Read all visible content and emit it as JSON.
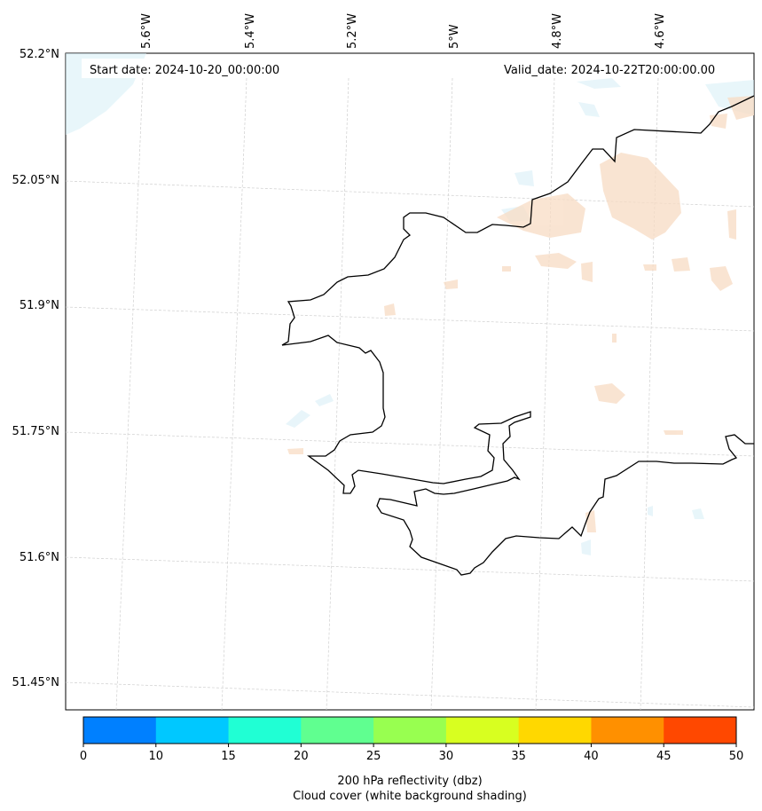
{
  "map": {
    "start_label": "Start date: 2024-10-20_00:00:00",
    "valid_label": "Valid_date: 2024-10-22T20:00:00.00",
    "lon_labels": [
      "5.6°W",
      "5.4°W",
      "5.2°W",
      "5°W",
      "4.8°W",
      "4.6°W"
    ],
    "lat_labels": [
      "52.2°N",
      "52.05°N",
      "51.9°N",
      "51.75°N",
      "51.6°N",
      "51.45°N"
    ],
    "features": [
      "coastline",
      "graticule",
      "cloud-cover-shading",
      "reflectivity-contours"
    ]
  },
  "colorbar": {
    "ticks": [
      "0",
      "10",
      "15",
      "20",
      "25",
      "30",
      "35",
      "40",
      "45",
      "50"
    ],
    "colors": [
      "#0080ff",
      "#00c8ff",
      "#20ffd4",
      "#60ff90",
      "#98ff50",
      "#d8ff20",
      "#ffd800",
      "#ff9000",
      "#ff4800"
    ],
    "label_line1": "200 hPa reflectivity (dbz)",
    "label_line2": "Cloud cover (white background shading)"
  }
}
